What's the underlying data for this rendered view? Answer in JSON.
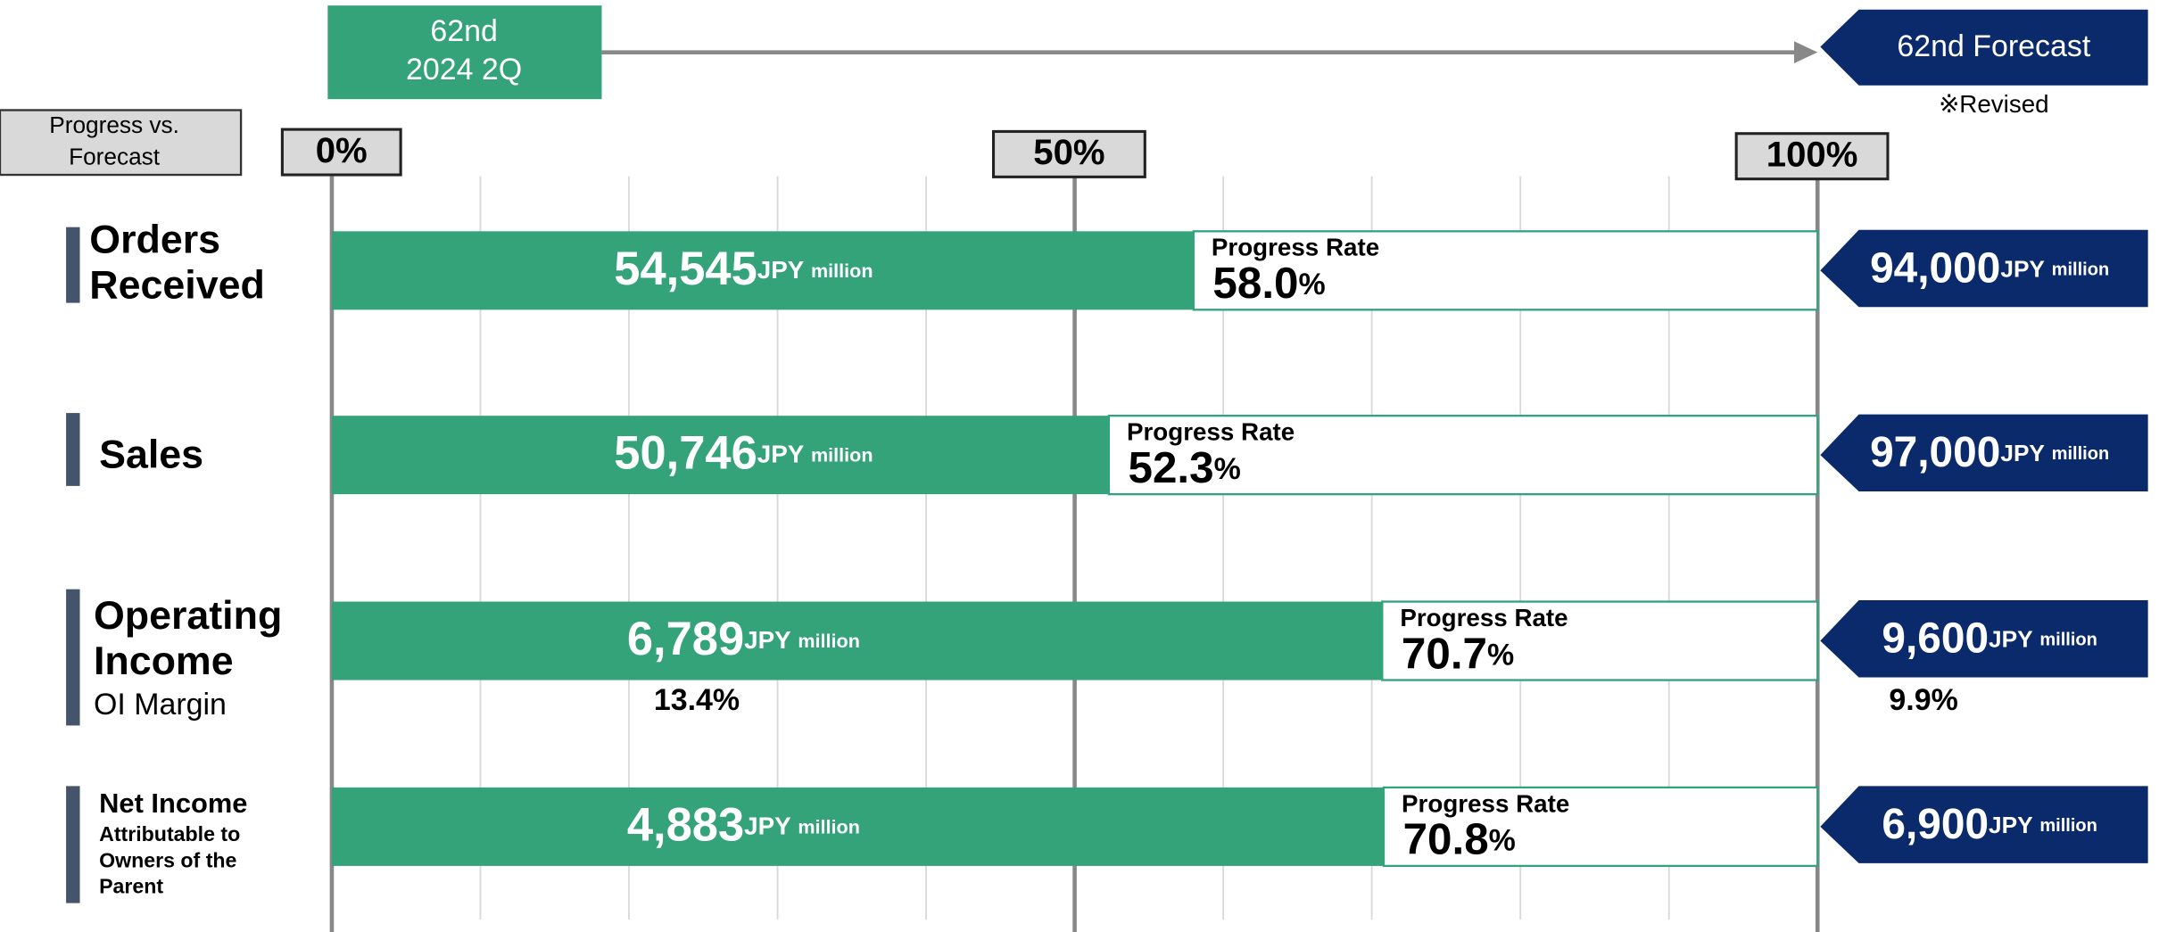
{
  "chart_data": {
    "type": "progress",
    "corner_label": [
      "Progress vs.",
      "Forecast"
    ],
    "actual_label": [
      "62nd",
      "2024 2Q"
    ],
    "forecast_label": "62nd Forecast",
    "forecast_note": "※Revised",
    "categories": [
      [
        "Orders",
        "Received"
      ],
      [
        "Sales"
      ],
      [
        "Operating",
        "Income"
      ],
      [
        "Net Income"
      ]
    ],
    "category_notes": [
      null,
      null,
      "OI Margin",
      [
        "Attributable to",
        "Owners of the",
        "Parent"
      ]
    ],
    "progress_label": "Progress Rate",
    "values": [
      58.0,
      52.3,
      70.7,
      70.8
    ],
    "value_labels": [
      "58.0",
      "52.3",
      "70.7",
      "70.8"
    ],
    "value_unit": "%",
    "actual": {
      "values": [
        54545,
        50746,
        6789,
        4883
      ],
      "value_labels": [
        "54,545",
        "50,746",
        "6,789",
        "4,883"
      ]
    },
    "forecast": {
      "values": [
        94000,
        97000,
        9600,
        6900
      ],
      "value_labels": [
        "94,000",
        "97,000",
        "9,600",
        "6,900"
      ]
    },
    "unit": [
      "JPY",
      "million"
    ],
    "oi_margin": {
      "actual": {
        "value": 13.4,
        "label": "13.4%"
      },
      "forecast": {
        "value": 9.9,
        "label": "9.9%"
      }
    },
    "xlim": [
      0,
      100
    ],
    "xticks": [
      {
        "value": 0,
        "label": "0%"
      },
      {
        "value": 50,
        "label": "50%"
      },
      {
        "value": 100,
        "label": "100%"
      }
    ],
    "minor_xticks": [
      10,
      20,
      30,
      40,
      60,
      70,
      80,
      90
    ],
    "grid": true,
    "bar_color": "#34a37a",
    "forecast_color": "#0b2a6b",
    "category_color": "#44546a"
  }
}
